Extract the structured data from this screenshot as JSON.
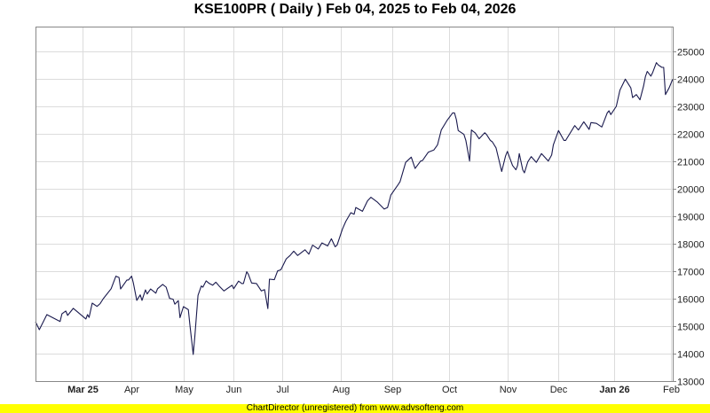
{
  "title": "KSE100PR ( Daily ) Feb 04, 2025 to Feb 04, 2026",
  "footer": "ChartDirector (unregistered) from www.advsofteng.com",
  "chart_data": {
    "type": "line",
    "title": "KSE100PR ( Daily ) Feb 04, 2025 to Feb 04, 2026",
    "xlabel": "",
    "ylabel": "",
    "xlim": [
      "2025-02-04",
      "2026-02-04"
    ],
    "ylim": [
      13000,
      25500
    ],
    "y_ticks": [
      13000,
      14000,
      15000,
      16000,
      17000,
      18000,
      19000,
      20000,
      21000,
      22000,
      23000,
      24000,
      25000
    ],
    "y_axis_position": "right",
    "x_ticks": [
      {
        "date": "2025-03-01",
        "label": "Mar 25",
        "bold": true
      },
      {
        "date": "2025-04-01",
        "label": "Apr",
        "bold": false
      },
      {
        "date": "2025-05-01",
        "label": "May",
        "bold": false
      },
      {
        "date": "2025-06-01",
        "label": "Jun",
        "bold": false
      },
      {
        "date": "2025-07-01",
        "label": "Jul",
        "bold": false
      },
      {
        "date": "2025-08-01",
        "label": "Aug",
        "bold": false
      },
      {
        "date": "2025-09-01",
        "label": "Sep",
        "bold": false
      },
      {
        "date": "2025-10-01",
        "label": "Oct",
        "bold": false
      },
      {
        "date": "2025-11-01",
        "label": "Nov",
        "bold": false
      },
      {
        "date": "2025-12-01",
        "label": "Dec",
        "bold": false
      },
      {
        "date": "2026-01-01",
        "label": "Jan 26",
        "bold": true
      },
      {
        "date": "2026-02-01",
        "label": "Feb",
        "bold": false
      }
    ],
    "grid": true,
    "line_color": "#1a1a4e",
    "series": [
      {
        "values": [
          [
            "2025-02-04",
            15160
          ],
          [
            "2025-02-06",
            14870
          ],
          [
            "2025-02-10",
            15420
          ],
          [
            "2025-02-17",
            15170
          ],
          [
            "2025-02-18",
            15450
          ],
          [
            "2025-02-20",
            15550
          ],
          [
            "2025-02-21",
            15390
          ],
          [
            "2025-02-24",
            15650
          ],
          [
            "2025-02-26",
            15530
          ],
          [
            "2025-03-03",
            15260
          ],
          [
            "2025-03-04",
            15420
          ],
          [
            "2025-03-05",
            15320
          ],
          [
            "2025-03-07",
            15840
          ],
          [
            "2025-03-10",
            15720
          ],
          [
            "2025-03-12",
            15820
          ],
          [
            "2025-03-14",
            16000
          ],
          [
            "2025-03-19",
            16360
          ],
          [
            "2025-03-22",
            16820
          ],
          [
            "2025-03-24",
            16770
          ],
          [
            "2025-03-25",
            16350
          ],
          [
            "2025-03-29",
            16680
          ],
          [
            "2025-03-30",
            16680
          ],
          [
            "2025-04-01",
            16820
          ],
          [
            "2025-04-02",
            16580
          ],
          [
            "2025-04-04",
            15940
          ],
          [
            "2025-04-06",
            16140
          ],
          [
            "2025-04-07",
            15940
          ],
          [
            "2025-04-09",
            16320
          ],
          [
            "2025-04-10",
            16170
          ],
          [
            "2025-04-12",
            16350
          ],
          [
            "2025-04-15",
            16200
          ],
          [
            "2025-04-16",
            16360
          ],
          [
            "2025-04-19",
            16520
          ],
          [
            "2025-04-21",
            16420
          ],
          [
            "2025-04-23",
            16010
          ],
          [
            "2025-04-25",
            15980
          ],
          [
            "2025-04-26",
            15800
          ],
          [
            "2025-04-28",
            15930
          ],
          [
            "2025-04-29",
            15310
          ],
          [
            "2025-05-01",
            15710
          ],
          [
            "2025-05-04",
            15600
          ],
          [
            "2025-05-05",
            15040
          ],
          [
            "2025-05-07",
            13970
          ],
          [
            "2025-05-08",
            14610
          ],
          [
            "2025-05-10",
            16120
          ],
          [
            "2025-05-12",
            16460
          ],
          [
            "2025-05-13",
            16420
          ],
          [
            "2025-05-15",
            16650
          ],
          [
            "2025-05-17",
            16550
          ],
          [
            "2025-05-19",
            16490
          ],
          [
            "2025-05-21",
            16600
          ],
          [
            "2025-05-23",
            16460
          ],
          [
            "2025-05-26",
            16280
          ],
          [
            "2025-05-31",
            16490
          ],
          [
            "2025-06-01",
            16360
          ],
          [
            "2025-06-04",
            16640
          ],
          [
            "2025-06-06",
            16550
          ],
          [
            "2025-06-07",
            16550
          ],
          [
            "2025-06-09",
            16980
          ],
          [
            "2025-06-10",
            16890
          ],
          [
            "2025-06-12",
            16570
          ],
          [
            "2025-06-15",
            16550
          ],
          [
            "2025-06-18",
            16280
          ],
          [
            "2025-06-20",
            16330
          ],
          [
            "2025-06-22",
            15640
          ],
          [
            "2025-06-23",
            16710
          ],
          [
            "2025-06-26",
            16690
          ],
          [
            "2025-06-28",
            17010
          ],
          [
            "2025-06-30",
            17050
          ],
          [
            "2025-07-03",
            17450
          ],
          [
            "2025-07-05",
            17570
          ],
          [
            "2025-07-07",
            17730
          ],
          [
            "2025-07-09",
            17570
          ],
          [
            "2025-07-13",
            17780
          ],
          [
            "2025-07-15",
            17620
          ],
          [
            "2025-07-17",
            17950
          ],
          [
            "2025-07-20",
            17810
          ],
          [
            "2025-07-22",
            18030
          ],
          [
            "2025-07-25",
            17920
          ],
          [
            "2025-07-27",
            18180
          ],
          [
            "2025-07-29",
            17890
          ],
          [
            "2025-07-30",
            17950
          ],
          [
            "2025-08-02",
            18540
          ],
          [
            "2025-08-04",
            18810
          ],
          [
            "2025-08-07",
            19130
          ],
          [
            "2025-08-09",
            19070
          ],
          [
            "2025-08-10",
            19320
          ],
          [
            "2025-08-14",
            19180
          ],
          [
            "2025-08-17",
            19560
          ],
          [
            "2025-08-19",
            19690
          ],
          [
            "2025-08-23",
            19510
          ],
          [
            "2025-08-27",
            19260
          ],
          [
            "2025-08-29",
            19320
          ],
          [
            "2025-08-31",
            19770
          ],
          [
            "2025-09-04",
            20150
          ],
          [
            "2025-09-05",
            20260
          ],
          [
            "2025-09-08",
            20960
          ],
          [
            "2025-09-11",
            21150
          ],
          [
            "2025-09-13",
            20740
          ],
          [
            "2025-09-16",
            21010
          ],
          [
            "2025-09-17",
            21030
          ],
          [
            "2025-09-20",
            21330
          ],
          [
            "2025-09-23",
            21410
          ],
          [
            "2025-09-25",
            21600
          ],
          [
            "2025-09-27",
            22140
          ],
          [
            "2025-09-30",
            22480
          ],
          [
            "2025-10-03",
            22760
          ],
          [
            "2025-10-04",
            22760
          ],
          [
            "2025-10-05",
            22520
          ],
          [
            "2025-10-06",
            22120
          ],
          [
            "2025-10-09",
            21980
          ],
          [
            "2025-10-10",
            21760
          ],
          [
            "2025-10-12",
            21010
          ],
          [
            "2025-10-13",
            22140
          ],
          [
            "2025-10-15",
            22030
          ],
          [
            "2025-10-17",
            21820
          ],
          [
            "2025-10-20",
            22040
          ],
          [
            "2025-10-21",
            21970
          ],
          [
            "2025-10-23",
            21760
          ],
          [
            "2025-10-24",
            21710
          ],
          [
            "2025-10-26",
            21490
          ],
          [
            "2025-10-29",
            20630
          ],
          [
            "2025-10-31",
            21190
          ],
          [
            "2025-11-01",
            21360
          ],
          [
            "2025-11-04",
            20850
          ],
          [
            "2025-11-06",
            20690
          ],
          [
            "2025-11-07",
            20850
          ],
          [
            "2025-11-08",
            21280
          ],
          [
            "2025-11-10",
            20690
          ],
          [
            "2025-11-11",
            20580
          ],
          [
            "2025-11-13",
            20980
          ],
          [
            "2025-11-15",
            21170
          ],
          [
            "2025-11-18",
            20960
          ],
          [
            "2025-11-21",
            21280
          ],
          [
            "2025-11-25",
            21010
          ],
          [
            "2025-11-27",
            21230
          ],
          [
            "2025-11-28",
            21600
          ],
          [
            "2025-12-01",
            22120
          ],
          [
            "2025-12-04",
            21760
          ],
          [
            "2025-12-05",
            21760
          ],
          [
            "2025-12-10",
            22300
          ],
          [
            "2025-12-12",
            22140
          ],
          [
            "2025-12-15",
            22440
          ],
          [
            "2025-12-18",
            22160
          ],
          [
            "2025-12-19",
            22410
          ],
          [
            "2025-12-22",
            22380
          ],
          [
            "2025-12-25",
            22250
          ],
          [
            "2025-12-28",
            22760
          ],
          [
            "2025-12-29",
            22840
          ],
          [
            "2025-12-30",
            22700
          ],
          [
            "2026-01-02",
            23000
          ],
          [
            "2026-01-04",
            23590
          ],
          [
            "2026-01-07",
            23990
          ],
          [
            "2026-01-10",
            23670
          ],
          [
            "2026-01-11",
            23320
          ],
          [
            "2026-01-13",
            23430
          ],
          [
            "2026-01-15",
            23240
          ],
          [
            "2026-01-17",
            23750
          ],
          [
            "2026-01-18",
            24080
          ],
          [
            "2026-01-19",
            24270
          ],
          [
            "2026-01-21",
            24100
          ],
          [
            "2026-01-22",
            24240
          ],
          [
            "2026-01-24",
            24590
          ],
          [
            "2026-01-25",
            24510
          ],
          [
            "2026-01-27",
            24420
          ],
          [
            "2026-01-28",
            24420
          ],
          [
            "2026-01-29",
            23430
          ],
          [
            "2026-01-31",
            23670
          ],
          [
            "2026-02-04",
            23990
          ]
        ]
      }
    ]
  }
}
